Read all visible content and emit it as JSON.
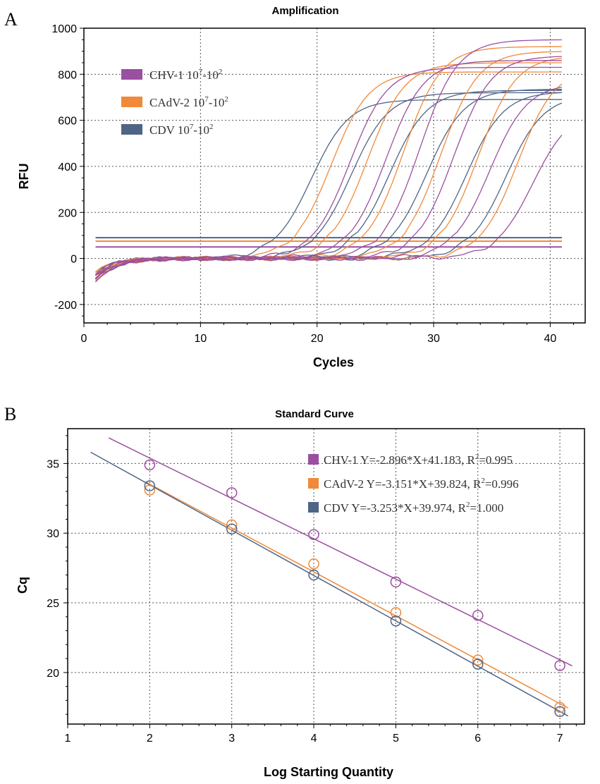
{
  "panels": {
    "a": "A",
    "b": "B"
  },
  "colors": {
    "chv": "#9b4fa0",
    "cadv": "#f08a3a",
    "cdv": "#4f6586"
  },
  "chart_data": [
    {
      "type": "line",
      "title": "Amplification",
      "xlabel": "Cycles",
      "ylabel": "RFU",
      "xlim": [
        0,
        43
      ],
      "ylim": [
        -280,
        1000
      ],
      "xticks": [
        0,
        10,
        20,
        30,
        40
      ],
      "yticks": [
        -200,
        0,
        200,
        400,
        600,
        800,
        1000
      ],
      "grid": true,
      "legend_position": "top-left",
      "legend": [
        {
          "key": "chv",
          "name": "CHV-1 10",
          "sup1": "7",
          "mid": "-10",
          "sup2": "2"
        },
        {
          "key": "cadv",
          "name": "CAdV-2 10",
          "sup1": "7",
          "mid": "-10",
          "sup2": "2"
        },
        {
          "key": "cdv",
          "name": "CDV 10",
          "sup1": "7",
          "mid": "-10",
          "sup2": "2"
        }
      ],
      "thresholds": [
        {
          "key": "cdv",
          "value": 90
        },
        {
          "key": "cadv",
          "value": 75
        },
        {
          "key": "chv",
          "value": 50
        }
      ],
      "series": [
        {
          "key": "cdv",
          "midpoints": [
            19.5,
            22.9,
            26.2,
            29.4,
            32.8,
            36.2
          ],
          "plateaus": [
            690,
            720,
            730,
            735,
            725,
            710
          ]
        },
        {
          "key": "cadv",
          "midpoints": [
            21.2,
            24.3,
            27.4,
            30.6,
            33.8,
            37.2
          ],
          "plateaus": [
            810,
            850,
            920,
            900,
            880,
            830
          ]
        },
        {
          "key": "chv",
          "midpoints": [
            22.8,
            25.9,
            28.8,
            31.7,
            34.8,
            38.5
          ],
          "plateaus": [
            830,
            860,
            950,
            880,
            760,
            650
          ]
        }
      ]
    },
    {
      "type": "scatter",
      "title": "Standard Curve",
      "xlabel": "Log Starting Quantity",
      "ylabel": "Cq",
      "xlim": [
        1,
        7.3
      ],
      "ylim": [
        16.3,
        37.5
      ],
      "xticks": [
        1,
        2,
        3,
        4,
        5,
        6,
        7
      ],
      "yticks": [
        20,
        25,
        30,
        35
      ],
      "grid": true,
      "legend_position": "top-right",
      "series": [
        {
          "key": "chv",
          "name": "CHV-1",
          "label": "CHV-1 Y=-2.896*X+41.183, R",
          "r2": "=0.995",
          "slope": -2.896,
          "intercept": 41.183,
          "fit_range": [
            1.5,
            7.15
          ],
          "x": [
            2,
            3,
            4,
            5,
            6,
            7
          ],
          "y": [
            34.9,
            32.9,
            29.9,
            26.5,
            24.1,
            20.5
          ]
        },
        {
          "key": "cadv",
          "name": "CAdV-2",
          "label": "CAdV-2  Y=-3.151*X+39.824, R",
          "r2": "=0.996",
          "slope": -3.151,
          "intercept": 39.824,
          "fit_range": [
            1.95,
            7.1
          ],
          "x": [
            2,
            3,
            4,
            5,
            6,
            7
          ],
          "y": [
            33.1,
            30.6,
            27.8,
            24.3,
            20.9,
            17.5
          ]
        },
        {
          "key": "cdv",
          "name": "CDV",
          "label": "CDV Y=-3.253*X+39.974, R",
          "r2": "=1.000",
          "slope": -3.253,
          "intercept": 39.974,
          "fit_range": [
            1.28,
            7.1
          ],
          "x": [
            2,
            3,
            4,
            5,
            6,
            7
          ],
          "y": [
            33.4,
            30.3,
            27.0,
            23.7,
            20.6,
            17.2
          ]
        }
      ]
    }
  ]
}
